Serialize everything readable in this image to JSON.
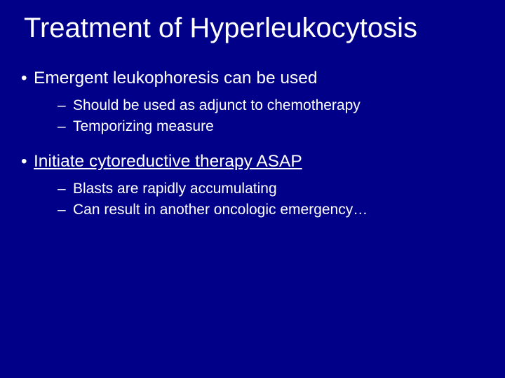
{
  "background_color": "#000089",
  "text_color": "#ffffff",
  "slide": {
    "title": "Treatment of Hyperleukocytosis",
    "title_fontsize": 40,
    "bullets": [
      {
        "text": "Emergent leukophoresis can be used",
        "underline": false,
        "sub": [
          "Should be used as adjunct to chemotherapy",
          "Temporizing measure"
        ]
      },
      {
        "text": "Initiate cytoreductive therapy ASAP",
        "underline": true,
        "sub": [
          "Blasts are rapidly accumulating",
          "Can result in another oncologic emergency…"
        ]
      }
    ],
    "lvl1_fontsize": 24.5,
    "lvl2_fontsize": 21
  }
}
